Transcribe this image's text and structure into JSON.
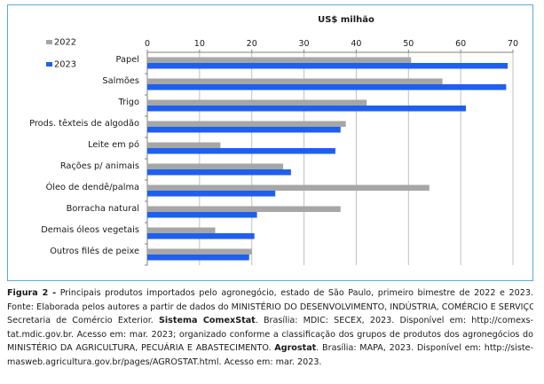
{
  "chart_data": {
    "type": "bar",
    "orientation": "horizontal",
    "title": "US$ milhão",
    "categories": [
      "Papel",
      "Salmões",
      "Trigo",
      "Prods. têxteis de algodão",
      "Leite em pó",
      "Rações p/ animais",
      "Óleo de dendê/palma",
      "Borracha natural",
      "Demais óleos vegetais",
      "Outros filés de peixe"
    ],
    "series": [
      {
        "name": "2022",
        "color": "#a6a6a6",
        "values": [
          50.5,
          56.5,
          42,
          38,
          14,
          26,
          54,
          37,
          13,
          20
        ]
      },
      {
        "name": "2023",
        "color": "#1f5ff0",
        "values": [
          69,
          68.7,
          61,
          37,
          36,
          27.5,
          24.5,
          21,
          20.5,
          19.5
        ]
      }
    ],
    "xlim": [
      0,
      70
    ],
    "xticks": [
      "0",
      "10",
      "20",
      "30",
      "40",
      "50",
      "60",
      "70"
    ],
    "grid": true,
    "legend_position": "top-left"
  },
  "caption": {
    "figure_label": "Figura 2 -",
    "figure_title": "Principais produtos importados pelo agronegócio, estado de São Paulo, primeiro bimestre de 2022 e 2023.",
    "line2": "Fonte: Elaborada pelos autores a partir de dados do MINISTÉRIO DO DESENVOLVIMENTO, INDÚSTRIA, COMÉRCIO E SERVIÇOS.",
    "line3_pre": "Secretaria de Comércio Exterior.",
    "line3_bold": "Sistema ComexStat",
    "line3_post": ". Brasília: MDIC: SECEX, 2023. Disponível em: http://comexs-",
    "line4": "tat.mdic.gov.br. Acesso em: mar. 2023; organizado conforme a classificação dos grupos de produtos dos agronegócios do",
    "line5_pre": "MINISTÉRIO DA AGRICULTURA, PECUÁRIA E ABASTECIMENTO.",
    "line5_bold": "Agrostat",
    "line5_post": ". Brasília: MAPA, 2023. Disponível em: http://siste-",
    "line6": "masweb.agricultura.gov.br/pages/AGROSTAT.html. Acesso em: mar. 2023."
  }
}
